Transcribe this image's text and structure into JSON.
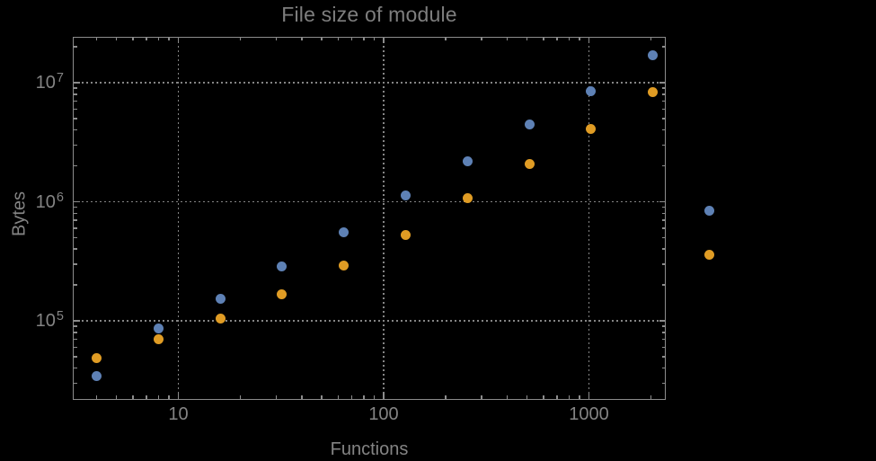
{
  "figure": {
    "title": "File size of module",
    "x_axis_label": "Functions",
    "y_axis_label": "Bytes",
    "x_tick_labels": [
      "10",
      "100",
      "1000"
    ],
    "y_tick_labels": [
      {
        "base": "10",
        "exp": "5"
      },
      {
        "base": "10",
        "exp": "6"
      },
      {
        "base": "10",
        "exp": "7"
      }
    ]
  },
  "colors": {
    "background": "#000000",
    "frame": "#8c8c8c",
    "gridline": "#858585",
    "title_text": "#7e7e7e",
    "axis_text": "#848484",
    "series_blue": "#5E81B5",
    "series_orange": "#E09C24"
  },
  "chart_data": {
    "type": "scatter",
    "title": "File size of module",
    "xlabel": "Functions",
    "ylabel": "Bytes",
    "x_scale": "log",
    "y_scale": "log",
    "x_range": [
      3.1,
      2350
    ],
    "y_range": [
      22000,
      25000000
    ],
    "grid": "dotted gridlines at decade ticks only",
    "legend": "none",
    "x_major_ticks": [
      10,
      100,
      1000
    ],
    "y_major_ticks": [
      100000,
      1000000,
      10000000
    ],
    "x": [
      4,
      8,
      16,
      32,
      64,
      128,
      256,
      512,
      1024,
      2048,
      3860
    ],
    "series": [
      {
        "name": "blue",
        "color": "#5E81B5",
        "values": [
          34200,
          87000,
          152000,
          284000,
          558000,
          1120000,
          2200000,
          4420000,
          8450000,
          17100000,
          847000
        ]
      },
      {
        "name": "orange",
        "color": "#E09C24",
        "values": [
          48800,
          69500,
          105000,
          168000,
          289000,
          530000,
          1080000,
          2060000,
          4120000,
          8300000,
          361000
        ]
      }
    ],
    "note": "last pair of points (x≈3860) is drawn outside the right edge of the plot frame"
  }
}
